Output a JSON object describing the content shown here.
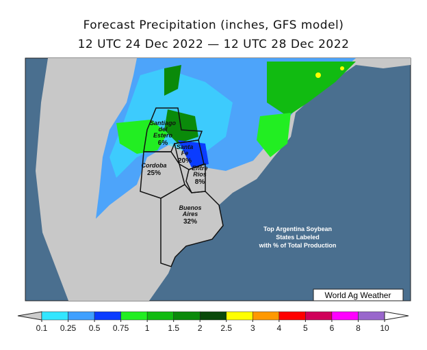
{
  "title": "Forecast Precipitation (inches, GFS model)",
  "subtitle": "12 UTC 24 Dec 2022 — 12 UTC 28 Dec 2022",
  "provinces": [
    {
      "name": [
        "Santiago",
        "del",
        "Estero"
      ],
      "share": "6%"
    },
    {
      "name": [
        "Santa",
        "Fe"
      ],
      "share": "20%"
    },
    {
      "name": [
        "Entre",
        "Rios"
      ],
      "share": "8%"
    },
    {
      "name": [
        "Cordoba"
      ],
      "share": "25%"
    },
    {
      "name": [
        "Buenos",
        "Aires"
      ],
      "share": "32%"
    }
  ],
  "annotation": [
    "Top Argentina Soybean",
    "States Labeled",
    "with % of Total Production"
  ],
  "credit": "World Ag Weather",
  "colorbar": {
    "ticks": [
      0.1,
      0.25,
      0.5,
      0.75,
      1,
      1.5,
      2,
      2.5,
      3,
      4,
      5,
      6,
      8,
      10
    ],
    "colors": [
      "#33e6ff",
      "#3fa0ff",
      "#0a3cff",
      "#22ee22",
      "#11bb11",
      "#0a8a0a",
      "#0a4a0a",
      "#ffff00",
      "#ff9900",
      "#ff0000",
      "#d0005a",
      "#ff00ff",
      "#9966cc"
    ],
    "under_color": "#cccccc",
    "over_color": "#ffffff"
  }
}
